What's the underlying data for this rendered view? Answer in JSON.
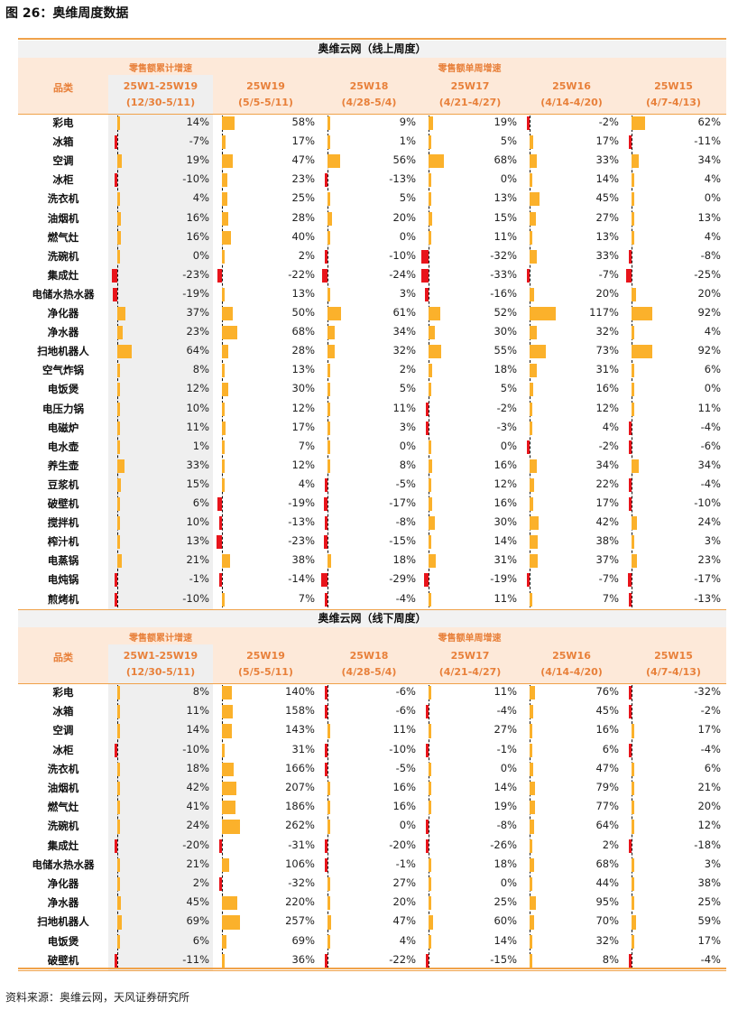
{
  "title": "图 26：奥维周度数据",
  "source": "资料来源：奥维云网，天风证券研究所",
  "colors": {
    "positive": "#fbb12b",
    "negative": "#e8141b",
    "accent": "#e8803a",
    "header_bg": "#fde9d9",
    "cum_bg": "#efefef"
  },
  "columns": [
    {
      "label": "25W1-25W19",
      "range": "(12/30-5/11)"
    },
    {
      "label": "25W19",
      "range": "(5/5-5/11)"
    },
    {
      "label": "25W18",
      "range": "(4/28-5/4)"
    },
    {
      "label": "25W17",
      "range": "(4/21-4/27)"
    },
    {
      "label": "25W16",
      "range": "(4/14-4/20)"
    },
    {
      "label": "25W15",
      "range": "(4/7-4/13)"
    }
  ],
  "chart_data": [
    {
      "type": "table",
      "title": "奥维云网（线上周度）",
      "category_header": "品类",
      "group_cum": "零售额累计增速",
      "group_week": "零售额单周增速",
      "categories": [
        "彩电",
        "冰箱",
        "空调",
        "冰柜",
        "洗衣机",
        "油烟机",
        "燃气灶",
        "洗碗机",
        "集成灶",
        "电储水热水器",
        "净化器",
        "净水器",
        "扫地机器人",
        "空气炸锅",
        "电饭煲",
        "电压力锅",
        "电磁炉",
        "电水壶",
        "养生壶",
        "豆浆机",
        "破壁机",
        "搅拌机",
        "榨汁机",
        "电蒸锅",
        "电炖锅",
        "煎烤机"
      ],
      "rows": [
        [
          14,
          58,
          9,
          19,
          -2,
          62
        ],
        [
          -7,
          17,
          1,
          5,
          17,
          -11
        ],
        [
          19,
          47,
          56,
          68,
          33,
          34
        ],
        [
          -10,
          23,
          -13,
          0,
          14,
          4
        ],
        [
          4,
          25,
          5,
          13,
          45,
          0
        ],
        [
          16,
          28,
          20,
          15,
          27,
          13
        ],
        [
          16,
          40,
          0,
          11,
          13,
          4
        ],
        [
          0,
          2,
          -10,
          -32,
          33,
          -8
        ],
        [
          -23,
          -22,
          -24,
          -33,
          -7,
          -25
        ],
        [
          -19,
          13,
          3,
          -16,
          20,
          20
        ],
        [
          37,
          50,
          61,
          52,
          117,
          92
        ],
        [
          23,
          68,
          34,
          30,
          32,
          4
        ],
        [
          64,
          28,
          32,
          55,
          73,
          92
        ],
        [
          8,
          13,
          2,
          18,
          31,
          6
        ],
        [
          12,
          30,
          5,
          5,
          16,
          0
        ],
        [
          10,
          12,
          11,
          -2,
          12,
          11
        ],
        [
          11,
          17,
          3,
          -3,
          4,
          -4
        ],
        [
          1,
          7,
          0,
          0,
          -2,
          -6
        ],
        [
          33,
          12,
          8,
          16,
          34,
          34
        ],
        [
          15,
          4,
          -5,
          12,
          22,
          -4
        ],
        [
          6,
          -19,
          -17,
          16,
          17,
          -10
        ],
        [
          10,
          -13,
          -8,
          30,
          42,
          24
        ],
        [
          13,
          -23,
          -15,
          14,
          38,
          3
        ],
        [
          21,
          38,
          18,
          31,
          37,
          23
        ],
        [
          -1,
          -14,
          -29,
          -19,
          -7,
          -17
        ],
        [
          -10,
          7,
          -4,
          11,
          7,
          -13
        ]
      ]
    },
    {
      "type": "table",
      "title": "奥维云网（线下周度）",
      "category_header": "品类",
      "group_cum": "零售额累计增速",
      "group_week": "零售额单周增速",
      "categories": [
        "彩电",
        "冰箱",
        "空调",
        "冰柜",
        "洗衣机",
        "油烟机",
        "燃气灶",
        "洗碗机",
        "集成灶",
        "电储水热水器",
        "净化器",
        "净水器",
        "扫地机器人",
        "电饭煲",
        "破壁机"
      ],
      "rows": [
        [
          8,
          140,
          -6,
          11,
          76,
          -32
        ],
        [
          11,
          158,
          -6,
          -4,
          45,
          -2
        ],
        [
          14,
          143,
          11,
          27,
          16,
          17
        ],
        [
          -10,
          31,
          -10,
          -1,
          6,
          -4
        ],
        [
          18,
          166,
          -5,
          0,
          47,
          6
        ],
        [
          42,
          207,
          16,
          14,
          79,
          21
        ],
        [
          41,
          186,
          16,
          19,
          77,
          20
        ],
        [
          24,
          262,
          0,
          -8,
          64,
          12
        ],
        [
          -20,
          -31,
          -20,
          -26,
          2,
          -18
        ],
        [
          21,
          106,
          -1,
          18,
          68,
          3
        ],
        [
          2,
          -32,
          27,
          0,
          44,
          38
        ],
        [
          45,
          220,
          20,
          25,
          95,
          25
        ],
        [
          69,
          257,
          47,
          60,
          70,
          59
        ],
        [
          6,
          69,
          4,
          14,
          32,
          17
        ],
        [
          -11,
          36,
          -22,
          -15,
          8,
          -4
        ]
      ]
    }
  ]
}
